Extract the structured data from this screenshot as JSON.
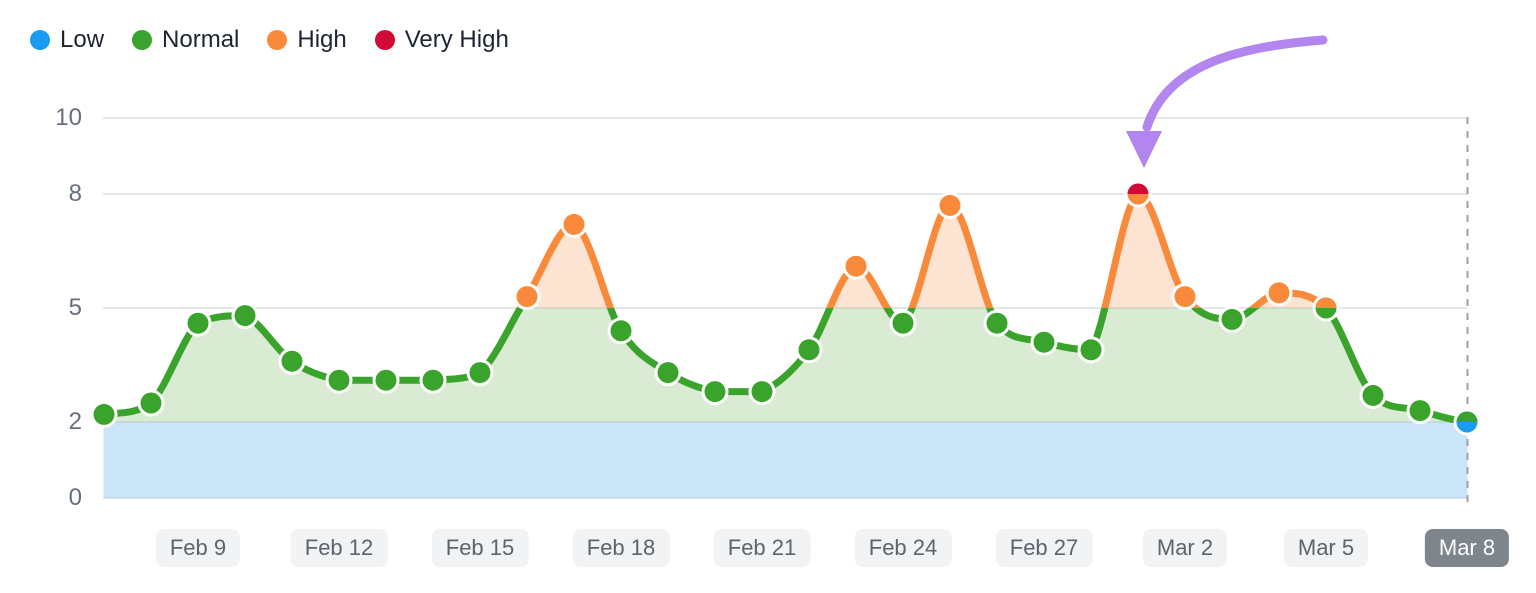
{
  "legend": {
    "items": [
      {
        "label": "Low",
        "color": "#1a9af0"
      },
      {
        "label": "Normal",
        "color": "#3aa32b"
      },
      {
        "label": "High",
        "color": "#f98a3c"
      },
      {
        "label": "Very High",
        "color": "#d10b36"
      }
    ]
  },
  "chart_data": {
    "type": "line",
    "title": "",
    "x": [
      "Feb 7",
      "Feb 8",
      "Feb 9",
      "Feb 10",
      "Feb 11",
      "Feb 12",
      "Feb 13",
      "Feb 14",
      "Feb 15",
      "Feb 16",
      "Feb 17",
      "Feb 18",
      "Feb 19",
      "Feb 20",
      "Feb 21",
      "Feb 22",
      "Feb 23",
      "Feb 24",
      "Feb 25",
      "Feb 26",
      "Feb 27",
      "Feb 28",
      "Mar 1",
      "Mar 2",
      "Mar 3",
      "Mar 4",
      "Mar 5",
      "Mar 6",
      "Mar 7",
      "Mar 8"
    ],
    "values": [
      2.2,
      2.5,
      4.6,
      4.8,
      3.6,
      3.1,
      3.1,
      3.1,
      3.3,
      5.3,
      7.2,
      4.4,
      3.3,
      2.8,
      2.8,
      3.9,
      6.1,
      4.6,
      7.7,
      4.6,
      4.1,
      3.9,
      8.0,
      5.3,
      4.7,
      5.4,
      5.0,
      2.7,
      2.3,
      2.0
    ],
    "statuses": [
      "normal",
      "normal",
      "normal",
      "normal",
      "normal",
      "normal",
      "normal",
      "normal",
      "normal",
      "high",
      "high",
      "normal",
      "normal",
      "normal",
      "normal",
      "normal",
      "high",
      "normal",
      "high",
      "normal",
      "normal",
      "normal",
      "very-high/high",
      "high",
      "normal",
      "high",
      "high/normal",
      "normal",
      "normal",
      "normal/low"
    ],
    "ylim": [
      0,
      10
    ],
    "y_ticks": [
      0,
      2,
      5,
      8,
      10
    ],
    "x_tick_labels": [
      "Feb 9",
      "Feb 12",
      "Feb 15",
      "Feb 18",
      "Feb 21",
      "Feb 24",
      "Feb 27",
      "Mar 2",
      "Mar 5",
      "Mar 8"
    ],
    "selected_x_tick": "Mar 8",
    "grid": true,
    "legend_position": "top-left",
    "thresholds": {
      "low_below": 2,
      "normal_below": 5,
      "high_below": 8
    },
    "colors": {
      "low": "#1a9af0",
      "normal": "#3aa32b",
      "high": "#f98a3c",
      "very_high": "#d10b36",
      "low_fill": "rgba(158,206,242,0.55)",
      "normal_fill": "rgba(141,195,120,0.33)",
      "high_fill": "rgba(250,162,102,0.30)",
      "grid": "#e4e6e9",
      "dash": "#9aa2aa",
      "annotation": "#b286ee"
    },
    "annotation": {
      "shape": "curved-arrow",
      "color": "#b286ee",
      "target": "Mar 1",
      "target_value": 8.0
    }
  }
}
